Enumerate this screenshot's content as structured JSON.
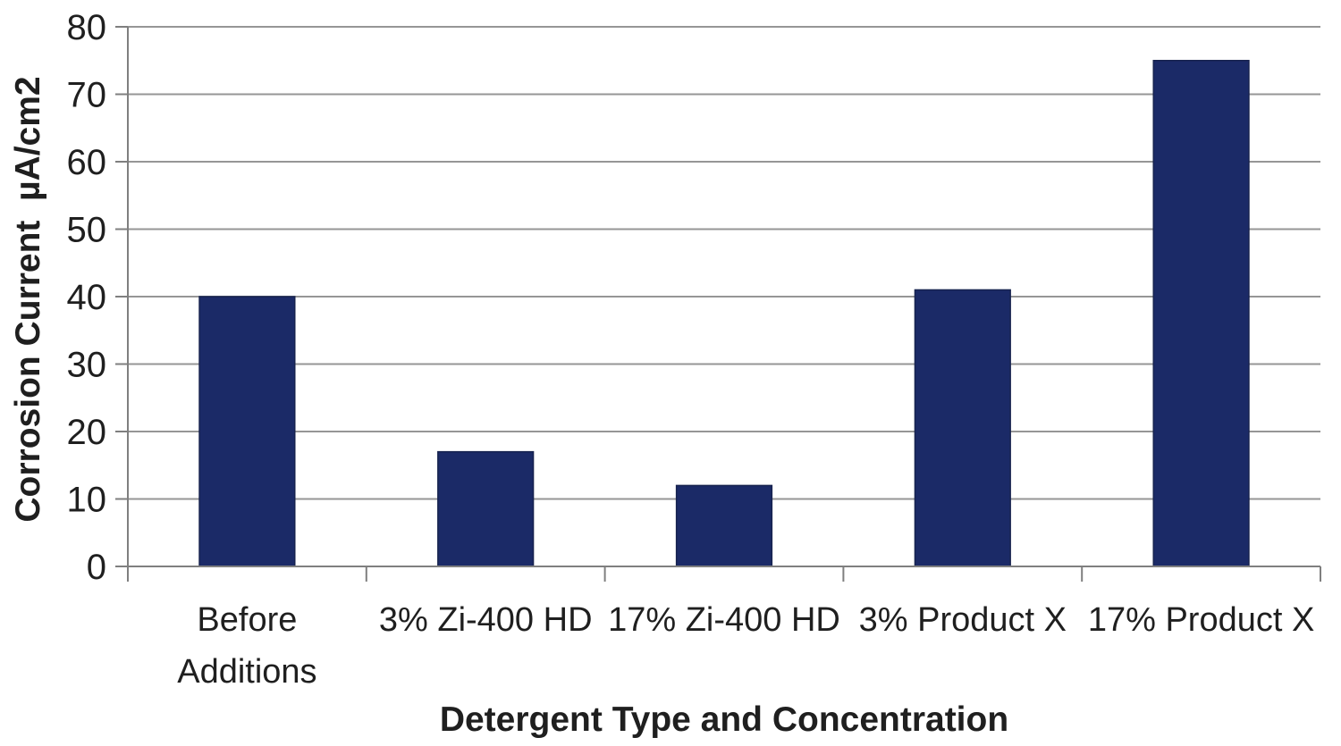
{
  "chart_data": {
    "type": "bar",
    "categories": [
      "Before Additions",
      "3% Zi-400 HD",
      "17% Zi-400 HD",
      "3% Product X",
      "17% Product X"
    ],
    "values": [
      40,
      17,
      12,
      41,
      75
    ],
    "title": "",
    "xlabel": "Detergent Type and Concentration",
    "ylabel": "Corrosion Current  µA/cm2",
    "ylim": [
      0,
      80
    ],
    "ytick_step": 10,
    "ytick_labels": [
      "0",
      "10",
      "20",
      "30",
      "40",
      "50",
      "60",
      "70",
      "80"
    ],
    "grid": true,
    "legend": false,
    "colors": {
      "bar_fill": "#1B2A67",
      "bar_edge": "#17234F",
      "gridline": "#969696",
      "axis": "#7F7F7F",
      "text": "#1F1F1F",
      "background": "#FFFFFF"
    }
  }
}
